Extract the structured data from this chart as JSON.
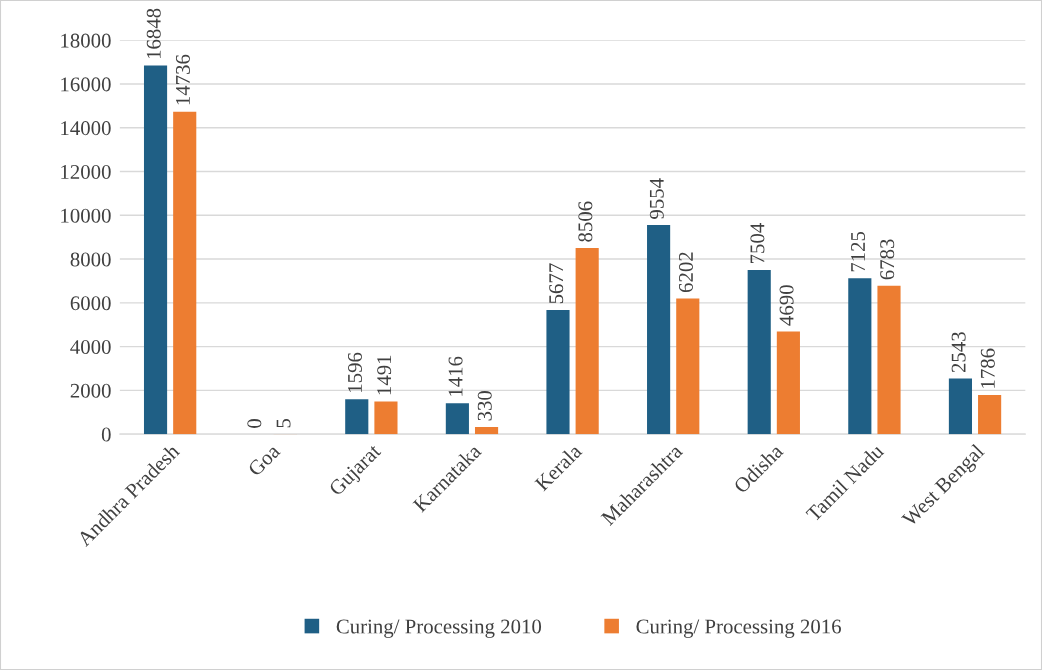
{
  "chart_data": {
    "type": "bar",
    "categories": [
      "Andhra Pradesh",
      "Goa",
      "Gujarat",
      "Karnataka",
      "Kerala",
      "Maharashtra",
      "Odisha",
      "Tamil Nadu",
      "West Bengal"
    ],
    "series": [
      {
        "name": "Curing/ Processing 2010",
        "color": "#1f5f85",
        "values": [
          16848,
          0,
          1596,
          1416,
          5677,
          9554,
          7504,
          7125,
          2543
        ]
      },
      {
        "name": "Curing/ Processing 2016",
        "color": "#ed7d31",
        "values": [
          14736,
          5,
          1491,
          330,
          8506,
          6202,
          4690,
          6783,
          1786
        ]
      }
    ],
    "ylim": [
      0,
      18000
    ],
    "yticks": [
      0,
      2000,
      4000,
      6000,
      8000,
      10000,
      12000,
      14000,
      16000,
      18000
    ],
    "grid": "y",
    "legend": "bottom",
    "data_labels": true
  }
}
